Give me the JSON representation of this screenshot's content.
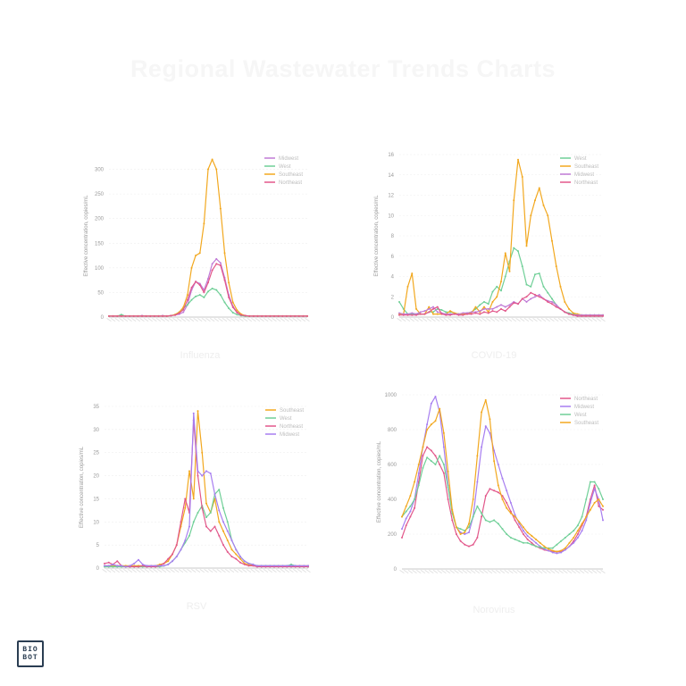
{
  "title": "Regional Wastewater Trends Charts",
  "logo": {
    "line1": "BIO",
    "line2": "BOT"
  },
  "colors": {
    "purple": "#c07ad6",
    "green": "#6fcf97",
    "orange": "#f2a81f",
    "pink": "#e2578a",
    "violet": "#a77ef0"
  },
  "chart_data": [
    {
      "type": "line",
      "caption": "Influenza",
      "ylabel": "Effective concentration, copies/mL",
      "ylim": [
        0,
        330
      ],
      "yticks": [
        0,
        50,
        100,
        150,
        200,
        250,
        300
      ],
      "series": [
        {
          "name": "Midwest",
          "color": "#c07ad6",
          "values": [
            2,
            2,
            2,
            3,
            2,
            2,
            2,
            2,
            3,
            2,
            2,
            2,
            2,
            3,
            2,
            3,
            4,
            6,
            10,
            25,
            55,
            72,
            68,
            55,
            78,
            108,
            118,
            110,
            80,
            45,
            22,
            10,
            5,
            3,
            2,
            2,
            2,
            2,
            2,
            2,
            2,
            2,
            2,
            2,
            2,
            2,
            2,
            2,
            2
          ]
        },
        {
          "name": "West",
          "color": "#6fcf97",
          "values": [
            2,
            2,
            2,
            5,
            2,
            2,
            2,
            2,
            2,
            2,
            2,
            2,
            2,
            2,
            2,
            3,
            5,
            10,
            18,
            25,
            35,
            42,
            45,
            40,
            52,
            58,
            55,
            45,
            30,
            18,
            9,
            5,
            3,
            2,
            2,
            2,
            2,
            2,
            2,
            2,
            2,
            2,
            2,
            2,
            2,
            2,
            2,
            2,
            2
          ]
        },
        {
          "name": "Southeast",
          "color": "#f2a81f",
          "values": [
            2,
            2,
            2,
            2,
            2,
            2,
            2,
            2,
            2,
            2,
            2,
            2,
            2,
            2,
            2,
            3,
            5,
            10,
            20,
            45,
            100,
            125,
            130,
            190,
            300,
            320,
            300,
            220,
            130,
            70,
            30,
            14,
            6,
            3,
            2,
            2,
            2,
            2,
            2,
            2,
            2,
            2,
            2,
            2,
            2,
            2,
            2,
            2,
            2
          ]
        },
        {
          "name": "Northeast",
          "color": "#e2578a",
          "values": [
            2,
            2,
            2,
            2,
            2,
            2,
            2,
            2,
            2,
            2,
            2,
            2,
            2,
            2,
            2,
            3,
            4,
            8,
            15,
            35,
            60,
            72,
            65,
            50,
            70,
            95,
            108,
            105,
            75,
            40,
            20,
            9,
            4,
            3,
            2,
            2,
            2,
            2,
            2,
            2,
            2,
            2,
            2,
            2,
            2,
            2,
            2,
            2,
            2
          ]
        }
      ]
    },
    {
      "type": "line",
      "caption": "COVID-19",
      "ylabel": "Effective concentration, copies/mL",
      "ylim": [
        0,
        16
      ],
      "yticks": [
        0,
        2,
        4,
        6,
        8,
        10,
        12,
        14,
        16
      ],
      "series": [
        {
          "name": "West",
          "color": "#6fcf97",
          "values": [
            1.5,
            0.8,
            0.3,
            0.3,
            0.3,
            0.3,
            0.3,
            0.5,
            0.5,
            0.8,
            0.7,
            0.5,
            0.5,
            0.4,
            0.3,
            0.3,
            0.4,
            0.5,
            0.8,
            1.2,
            1.5,
            1.3,
            2.5,
            3.0,
            2.6,
            4.0,
            5.5,
            6.8,
            6.5,
            5.0,
            3.2,
            3.0,
            4.2,
            4.3,
            3.0,
            2.4,
            1.8,
            1.2,
            0.8,
            0.5,
            0.4,
            0.3,
            0.2,
            0.2,
            0.2,
            0.2,
            0.2,
            0.2,
            0.2
          ]
        },
        {
          "name": "Southeast",
          "color": "#f2a81f",
          "values": [
            0.3,
            0.3,
            3.0,
            4.3,
            0.8,
            0.3,
            0.3,
            1.0,
            0.3,
            0.3,
            0.3,
            0.3,
            0.6,
            0.4,
            0.3,
            0.3,
            0.3,
            0.4,
            1.0,
            0.5,
            1.0,
            0.5,
            1.5,
            2.0,
            3.5,
            6.3,
            4.5,
            11.5,
            15.5,
            13.8,
            7.0,
            10.0,
            11.5,
            12.7,
            11.0,
            10.0,
            7.5,
            5.0,
            3.0,
            1.5,
            0.8,
            0.4,
            0.3,
            0.2,
            0.2,
            0.2,
            0.2,
            0.2,
            0.2
          ]
        },
        {
          "name": "Midwest",
          "color": "#c07ad6",
          "values": [
            0.4,
            0.3,
            0.3,
            0.4,
            0.3,
            0.5,
            0.6,
            0.8,
            1.0,
            0.5,
            0.4,
            0.3,
            0.3,
            0.3,
            0.3,
            0.4,
            0.4,
            0.5,
            0.5,
            0.6,
            0.8,
            0.8,
            0.8,
            1.0,
            1.2,
            1.0,
            1.2,
            1.5,
            1.3,
            1.8,
            1.5,
            1.8,
            2.0,
            2.2,
            1.8,
            1.6,
            1.5,
            1.2,
            0.8,
            0.5,
            0.3,
            0.2,
            0.2,
            0.2,
            0.2,
            0.2,
            0.2,
            0.2,
            0.2
          ]
        },
        {
          "name": "Northeast",
          "color": "#e2578a",
          "values": [
            0.2,
            0.2,
            0.2,
            0.2,
            0.2,
            0.3,
            0.3,
            0.5,
            0.8,
            1.0,
            0.3,
            0.2,
            0.2,
            0.3,
            0.2,
            0.2,
            0.3,
            0.3,
            0.4,
            0.3,
            0.5,
            0.4,
            0.6,
            0.5,
            0.8,
            0.6,
            1.0,
            1.4,
            1.3,
            1.8,
            2.0,
            2.4,
            2.2,
            2.0,
            1.8,
            1.5,
            1.3,
            1.0,
            0.8,
            0.5,
            0.3,
            0.2,
            0.1,
            0.1,
            0.1,
            0.1,
            0.1,
            0.1,
            0.1
          ]
        }
      ]
    },
    {
      "type": "line",
      "caption": "RSV",
      "ylabel": "Effective concentration, copies/mL",
      "ylim": [
        0,
        35
      ],
      "yticks": [
        0,
        5,
        10,
        15,
        20,
        25,
        30,
        35
      ],
      "series": [
        {
          "name": "Southeast",
          "color": "#f2a81f",
          "values": [
            0.5,
            0.5,
            0.5,
            0.5,
            0.5,
            0.5,
            0.5,
            0.5,
            0.5,
            0.5,
            0.5,
            0.5,
            0.5,
            0.8,
            1.0,
            1.5,
            3.0,
            5.0,
            9.0,
            13.0,
            21.0,
            15.0,
            34.0,
            25.0,
            14.0,
            12.0,
            15.0,
            10.0,
            8.0,
            6.0,
            4.0,
            3.0,
            2.0,
            1.0,
            0.8,
            0.6,
            0.5,
            0.5,
            0.5,
            0.5,
            0.5,
            0.5,
            0.5,
            0.5,
            0.5,
            0.5,
            0.5,
            0.5,
            0.5
          ]
        },
        {
          "name": "West",
          "color": "#6fcf97",
          "values": [
            0.3,
            0.3,
            0.3,
            0.3,
            0.3,
            0.3,
            0.3,
            0.3,
            0.3,
            0.3,
            0.3,
            0.3,
            0.3,
            0.3,
            0.5,
            0.8,
            1.5,
            2.5,
            4.0,
            5.5,
            7.0,
            10.0,
            12.0,
            13.5,
            11.0,
            12.0,
            16.0,
            17.0,
            13.0,
            10.0,
            6.0,
            4.0,
            2.5,
            1.5,
            1.0,
            0.8,
            0.5,
            0.5,
            0.5,
            0.5,
            0.5,
            0.5,
            0.5,
            0.5,
            0.8,
            0.5,
            0.3,
            0.3,
            0.3
          ]
        },
        {
          "name": "Northeast",
          "color": "#e2578a",
          "values": [
            1.0,
            1.2,
            0.8,
            1.5,
            0.5,
            0.3,
            0.3,
            0.3,
            0.3,
            0.5,
            0.3,
            0.3,
            0.3,
            0.5,
            1.0,
            2.0,
            3.0,
            5.0,
            10.0,
            15.0,
            12.0,
            32.0,
            20.0,
            13.0,
            9.0,
            8.0,
            9.0,
            7.0,
            5.0,
            3.5,
            2.5,
            2.0,
            1.2,
            0.8,
            0.5,
            0.5,
            0.3,
            0.3,
            0.3,
            0.3,
            0.3,
            0.3,
            0.3,
            0.3,
            0.3,
            0.3,
            0.3,
            0.3,
            0.3
          ]
        },
        {
          "name": "Midwest",
          "color": "#a77ef0",
          "values": [
            0.5,
            0.5,
            0.8,
            0.5,
            0.5,
            0.3,
            0.5,
            1.0,
            1.8,
            0.8,
            0.5,
            0.5,
            0.5,
            0.5,
            0.5,
            0.8,
            1.5,
            2.5,
            4.0,
            6.0,
            9.0,
            33.5,
            21.0,
            20.0,
            21.0,
            20.5,
            16.0,
            12.5,
            10.0,
            8.0,
            6.0,
            4.0,
            2.5,
            1.5,
            1.0,
            0.8,
            0.5,
            0.5,
            0.5,
            0.5,
            0.5,
            0.5,
            0.5,
            0.5,
            0.5,
            0.5,
            0.5,
            0.5,
            0.5
          ]
        }
      ]
    },
    {
      "type": "line",
      "caption": "Norovirus",
      "ylabel": "Effective concentration, copies/mL",
      "ylim": [
        0,
        1000
      ],
      "yticks": [
        0,
        200,
        400,
        600,
        800,
        1000
      ],
      "series": [
        {
          "name": "Northeast",
          "color": "#e2578a",
          "values": [
            180,
            250,
            300,
            350,
            500,
            650,
            700,
            680,
            650,
            600,
            550,
            400,
            280,
            200,
            160,
            140,
            130,
            140,
            180,
            300,
            420,
            460,
            450,
            440,
            420,
            380,
            330,
            280,
            240,
            200,
            170,
            150,
            130,
            120,
            110,
            105,
            100,
            100,
            100,
            110,
            130,
            160,
            200,
            250,
            300,
            400,
            480,
            360,
            340
          ]
        },
        {
          "name": "Midwest",
          "color": "#a77ef0",
          "values": [
            230,
            290,
            330,
            400,
            550,
            700,
            830,
            950,
            990,
            900,
            700,
            480,
            330,
            240,
            210,
            200,
            210,
            300,
            500,
            700,
            820,
            780,
            680,
            600,
            520,
            450,
            380,
            310,
            260,
            220,
            190,
            170,
            150,
            130,
            115,
            105,
            95,
            90,
            95,
            110,
            130,
            150,
            180,
            220,
            280,
            380,
            460,
            400,
            280
          ]
        },
        {
          "name": "West",
          "color": "#6fcf97",
          "values": [
            300,
            330,
            360,
            400,
            480,
            580,
            640,
            620,
            600,
            650,
            600,
            470,
            320,
            240,
            230,
            220,
            240,
            300,
            360,
            320,
            280,
            270,
            280,
            260,
            230,
            200,
            180,
            170,
            160,
            150,
            150,
            140,
            130,
            125,
            120,
            120,
            120,
            140,
            160,
            180,
            200,
            220,
            250,
            300,
            400,
            500,
            500,
            460,
            400
          ]
        },
        {
          "name": "Southeast",
          "color": "#f2a81f",
          "values": [
            300,
            360,
            420,
            500,
            600,
            700,
            800,
            830,
            850,
            920,
            780,
            560,
            340,
            240,
            200,
            210,
            260,
            400,
            650,
            900,
            970,
            860,
            620,
            480,
            400,
            350,
            320,
            300,
            270,
            240,
            210,
            190,
            170,
            150,
            130,
            115,
            105,
            100,
            105,
            120,
            150,
            180,
            220,
            260,
            300,
            340,
            380,
            400,
            360
          ]
        }
      ]
    }
  ]
}
